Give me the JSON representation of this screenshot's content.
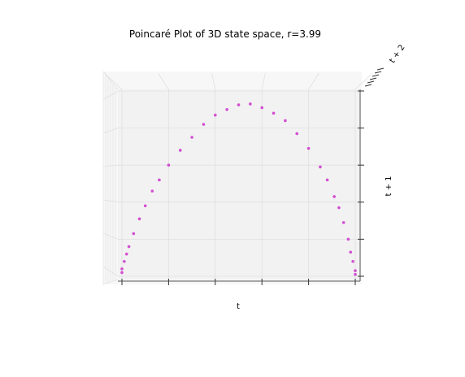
{
  "chart_data": {
    "type": "scatter",
    "title": "Poincaré Plot of 3D state space, r=3.99",
    "xlabel": "t",
    "ylabel": "t + 1",
    "zlabel": "t + 2",
    "r": 3.99,
    "xlim": [
      0,
      1
    ],
    "ylim": [
      0,
      1
    ],
    "grid": true,
    "tick_labels_visible": false,
    "x_ticks": [
      0,
      0.2,
      0.4,
      0.6,
      0.8,
      1.0
    ],
    "y_ticks": [
      0,
      0.2,
      0.4,
      0.6,
      0.8,
      1.0
    ],
    "point_color": "#cc33cc",
    "pane_color": "#f2f2f2",
    "grid_color": "#e0e0e0",
    "points": [
      {
        "x": 0.0,
        "y": 0.02
      },
      {
        "x": 0.0,
        "y": 0.04
      },
      {
        "x": 0.01,
        "y": 0.08
      },
      {
        "x": 0.02,
        "y": 0.12
      },
      {
        "x": 0.03,
        "y": 0.16
      },
      {
        "x": 0.05,
        "y": 0.23
      },
      {
        "x": 0.075,
        "y": 0.31
      },
      {
        "x": 0.1,
        "y": 0.38
      },
      {
        "x": 0.13,
        "y": 0.46
      },
      {
        "x": 0.16,
        "y": 0.52
      },
      {
        "x": 0.2,
        "y": 0.6
      },
      {
        "x": 0.25,
        "y": 0.68
      },
      {
        "x": 0.3,
        "y": 0.75
      },
      {
        "x": 0.35,
        "y": 0.82
      },
      {
        "x": 0.4,
        "y": 0.87
      },
      {
        "x": 0.45,
        "y": 0.9
      },
      {
        "x": 0.5,
        "y": 0.925
      },
      {
        "x": 0.55,
        "y": 0.93
      },
      {
        "x": 0.6,
        "y": 0.91
      },
      {
        "x": 0.65,
        "y": 0.88
      },
      {
        "x": 0.7,
        "y": 0.84
      },
      {
        "x": 0.75,
        "y": 0.77
      },
      {
        "x": 0.8,
        "y": 0.69
      },
      {
        "x": 0.85,
        "y": 0.59
      },
      {
        "x": 0.88,
        "y": 0.52
      },
      {
        "x": 0.91,
        "y": 0.43
      },
      {
        "x": 0.93,
        "y": 0.37
      },
      {
        "x": 0.95,
        "y": 0.29
      },
      {
        "x": 0.97,
        "y": 0.2
      },
      {
        "x": 0.98,
        "y": 0.13
      },
      {
        "x": 0.99,
        "y": 0.08
      },
      {
        "x": 1.0,
        "y": 0.03
      },
      {
        "x": 1.0,
        "y": 0.01
      }
    ]
  }
}
